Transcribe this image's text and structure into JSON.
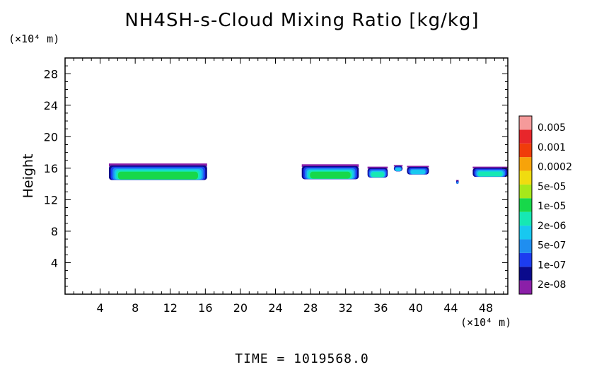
{
  "title": "NH4SH-s-Cloud Mixing Ratio [kg/kg]",
  "time_label": "TIME = 1019568.0",
  "y_unit": "(×10⁴ m)",
  "x_unit": "(×10⁴ m)",
  "colors": {
    "levels": [
      "#8b1fa8",
      "#0a0a8c",
      "#1c3cf0",
      "#1f8ef0",
      "#18c8f0",
      "#16e8b4",
      "#17d84a",
      "#a6e81a",
      "#f0dc10",
      "#f7a30a",
      "#f03c0a",
      "#e8262b",
      "#f59a9a"
    ]
  },
  "chart_data": {
    "type": "heatmap",
    "title": "NH4SH-s-Cloud Mixing Ratio [kg/kg]",
    "xlabel": "",
    "ylabel": "Height",
    "xlim": [
      0,
      50.5
    ],
    "ylim": [
      0,
      30
    ],
    "x_ticks": [
      4,
      8,
      12,
      16,
      20,
      24,
      28,
      32,
      36,
      40,
      44,
      48
    ],
    "y_ticks": [
      4,
      8,
      12,
      16,
      20,
      24,
      28
    ],
    "colorbar_labels": [
      "0.005",
      "0.001",
      "0.0002",
      "5e-05",
      "1e-05",
      "2e-06",
      "5e-07",
      "1e-07",
      "2e-08"
    ],
    "cloud_regions": [
      {
        "x": [
          5.0,
          16.2
        ],
        "y": [
          14.5,
          16.6
        ],
        "peak": 1e-05
      },
      {
        "x": [
          27.0,
          33.5
        ],
        "y": [
          14.6,
          16.5
        ],
        "peak": 1e-05
      },
      {
        "x": [
          34.5,
          36.8
        ],
        "y": [
          14.8,
          16.2
        ],
        "peak": 2e-06
      },
      {
        "x": [
          37.5,
          38.5
        ],
        "y": [
          15.6,
          16.4
        ],
        "peak": 5e-07
      },
      {
        "x": [
          39.0,
          41.5
        ],
        "y": [
          15.2,
          16.3
        ],
        "peak": 5e-07
      },
      {
        "x": [
          44.6,
          44.9
        ],
        "y": [
          14.0,
          14.5
        ],
        "peak": 1e-07
      },
      {
        "x": [
          46.5,
          50.5
        ],
        "y": [
          14.9,
          16.2
        ],
        "peak": 2e-06
      }
    ],
    "grid": false,
    "legend": "right colorbar"
  }
}
